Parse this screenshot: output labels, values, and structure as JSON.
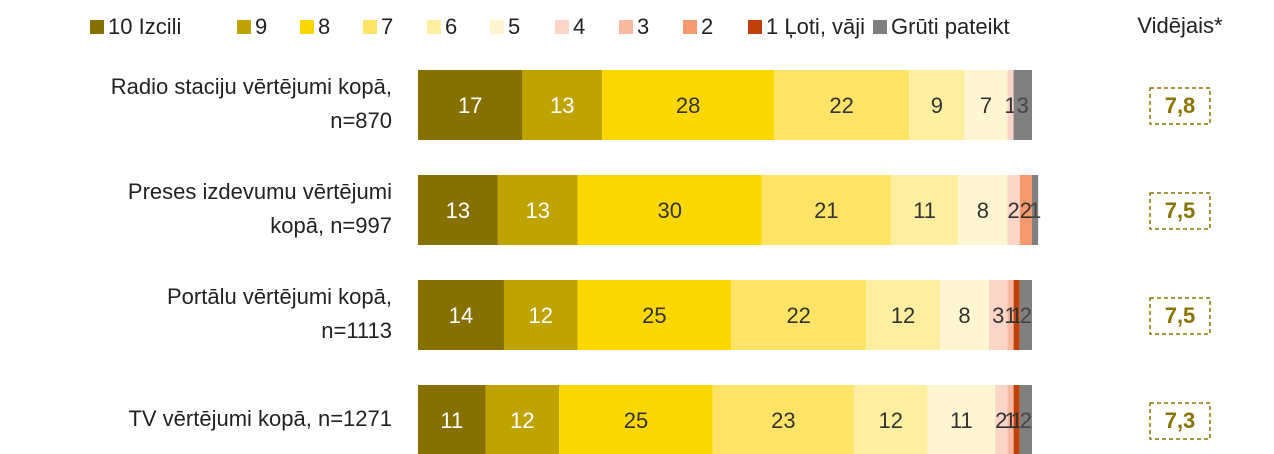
{
  "chart_data": {
    "type": "stacked-bar",
    "orientation": "horizontal",
    "categories": [
      [
        "Radio staciju vērtējumi kopā,",
        "n=870"
      ],
      [
        "Preses izdevumu vērtējumi",
        "kopā, n=997"
      ],
      [
        "Portālu vērtējumi kopā,",
        "n=1113"
      ],
      [
        "TV vērtējumi kopā, n=1271"
      ]
    ],
    "series": [
      {
        "name": "10 Izcili",
        "color": "#857000",
        "values": [
          17,
          13,
          14,
          11
        ]
      },
      {
        "name": "9",
        "color": "#bfa300",
        "values": [
          13,
          13,
          12,
          12
        ]
      },
      {
        "name": "8",
        "color": "#fcd800",
        "values": [
          28,
          30,
          25,
          25
        ]
      },
      {
        "name": "7",
        "color": "#fde466",
        "values": [
          22,
          21,
          22,
          23
        ]
      },
      {
        "name": "6",
        "color": "#fdeea0",
        "values": [
          9,
          11,
          12,
          12
        ]
      },
      {
        "name": "5",
        "color": "#fef6d0",
        "values": [
          7,
          8,
          8,
          11
        ]
      },
      {
        "name": "4",
        "color": "#fbd5c8",
        "values": [
          1,
          2,
          3,
          2
        ]
      },
      {
        "name": "3",
        "color": "#f8b9a0",
        "values": [
          0,
          0,
          1,
          1
        ]
      },
      {
        "name": "2",
        "color": "#f59a6e",
        "values": [
          0,
          2,
          0,
          0
        ]
      },
      {
        "name": "1 Ļoti, vāji",
        "color": "#c0400a",
        "values": [
          0,
          0,
          1,
          1
        ]
      },
      {
        "name": "Grūti pateikt",
        "color": "#808080",
        "values": [
          3,
          1,
          2,
          2
        ]
      }
    ],
    "xlim": [
      0,
      100
    ],
    "average_title": "Vidējais*",
    "averages": [
      7.8,
      7.5,
      7.5,
      7.3
    ],
    "average_labels": [
      "7,8",
      "7,5",
      "7,5",
      "7,3"
    ],
    "average_color": "#8a7300"
  }
}
